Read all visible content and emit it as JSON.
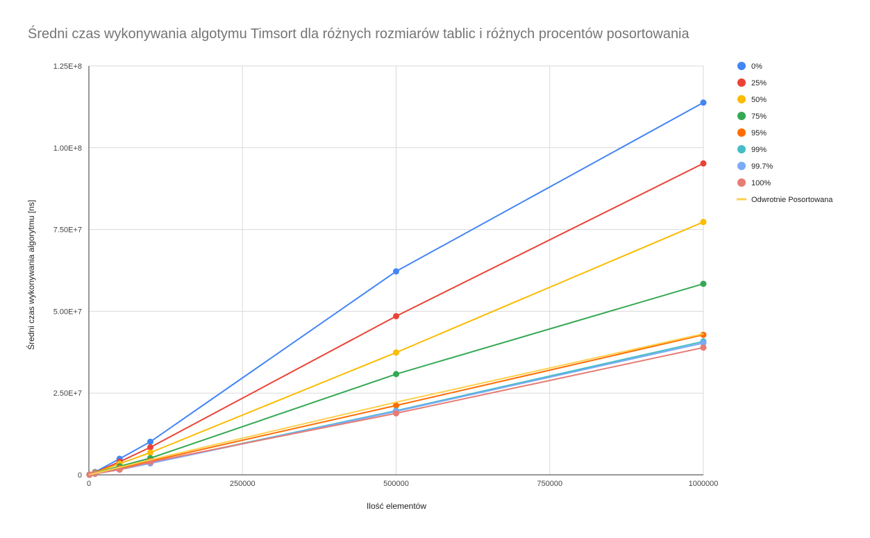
{
  "chart_data": {
    "type": "line",
    "title": "Średni czas wykonywania algotymu Timsort dla różnych rozmiarów tablic i różnych procentów posortowania",
    "xlabel": "Ilość elementów",
    "ylabel": "Średni czas wykonywania algorytmu [ns]",
    "xlim": [
      0,
      1000000
    ],
    "ylim": [
      0,
      125000000
    ],
    "x_ticks": [
      0,
      250000,
      500000,
      750000,
      1000000
    ],
    "x_tick_labels": [
      "0",
      "250000",
      "500000",
      "750000",
      "1000000"
    ],
    "y_ticks": [
      0,
      25000000,
      50000000,
      75000000,
      100000000,
      125000000
    ],
    "y_tick_labels": [
      "0",
      "2.50E+7",
      "5.00E+7",
      "7.50E+7",
      "1.00E+8",
      "1.25E+8"
    ],
    "grid": true,
    "legend_position": "right",
    "x": [
      1000,
      10000,
      50000,
      100000,
      500000,
      1000000
    ],
    "series": [
      {
        "name": "0%",
        "color": "#4285f4",
        "markers": true,
        "values": [
          90000,
          850000,
          4900000,
          10100000,
          62200000,
          113800000
        ]
      },
      {
        "name": "25%",
        "color": "#ea4335",
        "markers": true,
        "values": [
          80000,
          700000,
          4000000,
          8400000,
          48500000,
          95200000
        ]
      },
      {
        "name": "50%",
        "color": "#fbbc04",
        "markers": true,
        "values": [
          70000,
          600000,
          3400000,
          6800000,
          37400000,
          77300000
        ]
      },
      {
        "name": "75%",
        "color": "#34a853",
        "markers": true,
        "values": [
          60000,
          500000,
          2600000,
          5100000,
          30800000,
          58400000
        ]
      },
      {
        "name": "95%",
        "color": "#ff6d01",
        "markers": true,
        "values": [
          50000,
          400000,
          2000000,
          4200000,
          21200000,
          42800000
        ]
      },
      {
        "name": "99%",
        "color": "#46bdc6",
        "markers": true,
        "values": [
          40000,
          350000,
          1700000,
          3600000,
          19600000,
          40800000
        ]
      },
      {
        "name": "99.7%",
        "color": "#7baaf7",
        "markers": true,
        "values": [
          40000,
          340000,
          1600000,
          3500000,
          19400000,
          40300000
        ]
      },
      {
        "name": "100%",
        "color": "#e67c73",
        "markers": true,
        "values": [
          40000,
          330000,
          1600000,
          3900000,
          18800000,
          38900000
        ]
      },
      {
        "name": "Odwrotnie Posortowana",
        "color": "#fcd04f",
        "markers": false,
        "values": [
          50000,
          450000,
          2300000,
          4600000,
          22200000,
          43100000
        ]
      }
    ]
  }
}
